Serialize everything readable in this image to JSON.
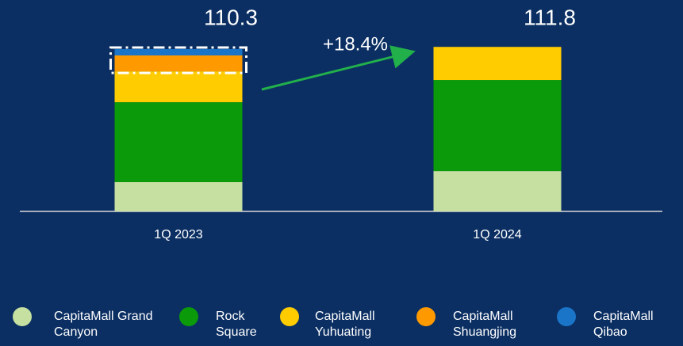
{
  "chart_data": {
    "type": "stacked_bar",
    "categories": [
      "1Q 2023",
      "1Q 2024"
    ],
    "series": [
      {
        "name": "CapitaMall Grand Canyon",
        "color": "#c5e0a0",
        "values": [
          19.9,
          27.4
        ]
      },
      {
        "name": "Rock Square",
        "color": "#0a9a0a",
        "values": [
          54.3,
          61.9
        ]
      },
      {
        "name": "CapitaMall Yuhuating",
        "color": "#ffcc00",
        "values": [
          21.0,
          22.5
        ]
      },
      {
        "name": "CapitaMall Shuangjing",
        "color": "#ff9900",
        "values": [
          10.8,
          0
        ]
      },
      {
        "name": "CapitaMall Qibao",
        "color": "#1a75c8",
        "values": [
          4.3,
          0
        ]
      }
    ],
    "totals": [
      110.3,
      111.8
    ],
    "annotation": "+18.4%",
    "ylim": [
      0,
      120
    ]
  }
}
